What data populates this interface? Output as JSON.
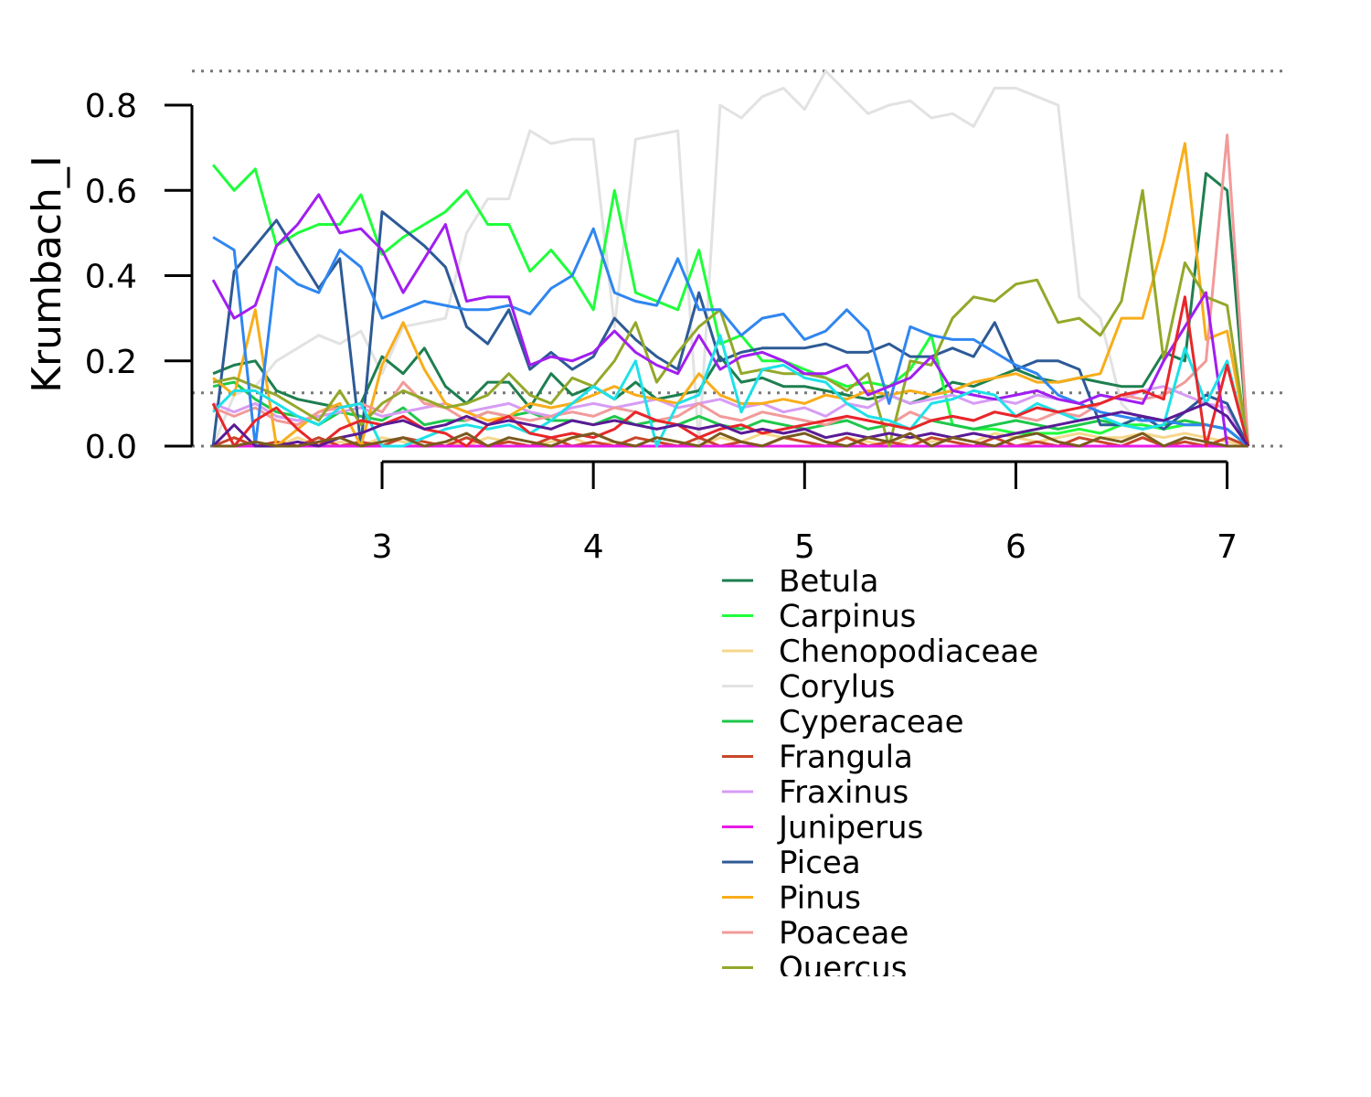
{
  "chart_data": {
    "type": "line",
    "title": "",
    "xlabel": "",
    "ylabel": "Krumbach_I",
    "xlim": [
      2.1,
      7.27
    ],
    "ylim": [
      0,
      0.8
    ],
    "x_ticks": [
      "3",
      "4",
      "5",
      "6",
      "7"
    ],
    "x_tick_values": [
      3,
      4,
      5,
      6,
      7
    ],
    "y_ticks": [
      "0.0",
      "0.2",
      "0.4",
      "0.6",
      "0.8"
    ],
    "y_tick_values": [
      0,
      0.2,
      0.4,
      0.6,
      0.8
    ],
    "reference_lines": [
      0,
      0.125,
      0.88
    ],
    "grid": false,
    "legend_position": "bottom",
    "x": [
      2.2,
      2.3,
      2.4,
      2.5,
      2.6,
      2.7,
      2.8,
      2.9,
      3.0,
      3.1,
      3.2,
      3.3,
      3.4,
      3.5,
      3.6,
      3.7,
      3.8,
      3.9,
      4.0,
      4.1,
      4.2,
      4.3,
      4.4,
      4.5,
      4.6,
      4.7,
      4.8,
      4.9,
      5.0,
      5.1,
      5.2,
      5.3,
      5.4,
      5.5,
      5.6,
      5.7,
      5.8,
      5.9,
      6.0,
      6.1,
      6.2,
      6.3,
      6.4,
      6.5,
      6.6,
      6.7,
      6.8,
      6.9,
      7.0,
      7.1
    ],
    "series": [
      {
        "name": "Betula",
        "color": "#1e7f4f",
        "values": [
          0.17,
          0.19,
          0.2,
          0.13,
          0.11,
          0.1,
          0.09,
          0.1,
          0.21,
          0.17,
          0.23,
          0.14,
          0.1,
          0.15,
          0.15,
          0.09,
          0.17,
          0.12,
          0.14,
          0.11,
          0.15,
          0.11,
          0.12,
          0.13,
          0.21,
          0.15,
          0.16,
          0.14,
          0.14,
          0.13,
          0.12,
          0.11,
          0.12,
          0.1,
          0.12,
          0.15,
          0.14,
          0.16,
          0.18,
          0.16,
          0.15,
          0.16,
          0.15,
          0.14,
          0.14,
          0.22,
          0.2,
          0.64,
          0.6,
          0.0
        ]
      },
      {
        "name": "Carpinus",
        "color": "#1eff3a",
        "values": [
          0.66,
          0.6,
          0.65,
          0.47,
          0.5,
          0.52,
          0.52,
          0.59,
          0.45,
          0.49,
          0.52,
          0.55,
          0.6,
          0.52,
          0.52,
          0.41,
          0.46,
          0.4,
          0.32,
          0.6,
          0.36,
          0.34,
          0.32,
          0.46,
          0.24,
          0.26,
          0.2,
          0.2,
          0.18,
          0.16,
          0.14,
          0.15,
          0.14,
          0.18,
          0.26,
          0.05,
          0.04,
          0.04,
          0.03,
          0.03,
          0.03,
          0.04,
          0.03,
          0.05,
          0.05,
          0.04,
          0.05,
          0.05,
          0.04,
          0.0
        ]
      },
      {
        "name": "Chenopodiaceae",
        "color": "#f5d78c",
        "values": [
          0.0,
          0.0,
          0.01,
          0.0,
          0.02,
          0.0,
          0.01,
          0.0,
          0.02,
          0.01,
          0.0,
          0.01,
          0.0,
          0.02,
          0.01,
          0.0,
          0.01,
          0.02,
          0.0,
          0.01,
          0.0,
          0.02,
          0.01,
          0.0,
          0.02,
          0.01,
          0.03,
          0.02,
          0.01,
          0.0,
          0.02,
          0.01,
          0.0,
          0.02,
          0.01,
          0.02,
          0.01,
          0.03,
          0.02,
          0.01,
          0.02,
          0.03,
          0.02,
          0.02,
          0.03,
          0.02,
          0.03,
          0.02,
          0.01,
          0.0
        ]
      },
      {
        "name": "Corylus",
        "color": "#e2e2e2",
        "values": [
          0.0,
          0.12,
          0.14,
          0.2,
          0.23,
          0.26,
          0.24,
          0.27,
          0.17,
          0.28,
          0.29,
          0.3,
          0.5,
          0.58,
          0.58,
          0.74,
          0.71,
          0.72,
          0.72,
          0.28,
          0.72,
          0.73,
          0.74,
          0.0,
          0.8,
          0.77,
          0.82,
          0.84,
          0.79,
          0.88,
          0.83,
          0.78,
          0.8,
          0.81,
          0.77,
          0.78,
          0.75,
          0.84,
          0.84,
          0.82,
          0.8,
          0.35,
          0.3,
          0.1,
          0.05,
          0.04,
          0.05,
          0.05,
          0.04,
          0.0
        ]
      },
      {
        "name": "Cyperaceae",
        "color": "#1ec74a",
        "values": [
          0.14,
          0.15,
          0.11,
          0.08,
          0.07,
          0.05,
          0.08,
          0.07,
          0.06,
          0.09,
          0.05,
          0.06,
          0.06,
          0.08,
          0.07,
          0.08,
          0.06,
          0.06,
          0.05,
          0.07,
          0.05,
          0.06,
          0.05,
          0.07,
          0.05,
          0.04,
          0.06,
          0.05,
          0.04,
          0.05,
          0.06,
          0.04,
          0.05,
          0.04,
          0.06,
          0.05,
          0.04,
          0.05,
          0.06,
          0.05,
          0.04,
          0.05,
          0.06,
          0.05,
          0.04,
          0.05,
          0.06,
          0.05,
          0.04,
          0.0
        ]
      },
      {
        "name": "Frangula",
        "color": "#c8472a",
        "values": [
          0.0,
          0.02,
          0.0,
          0.01,
          0.0,
          0.02,
          0.0,
          0.01,
          0.0,
          0.02,
          0.01,
          0.0,
          0.02,
          0.0,
          0.01,
          0.0,
          0.02,
          0.0,
          0.01,
          0.0,
          0.02,
          0.01,
          0.0,
          0.02,
          0.0,
          0.01,
          0.0,
          0.02,
          0.01,
          0.0,
          0.02,
          0.0,
          0.01,
          0.0,
          0.02,
          0.01,
          0.0,
          0.02,
          0.0,
          0.01,
          0.0,
          0.02,
          0.01,
          0.0,
          0.02,
          0.0,
          0.01,
          0.0,
          0.02,
          0.0
        ]
      },
      {
        "name": "Fraxinus",
        "color": "#d79cf4",
        "values": [
          0.1,
          0.08,
          0.1,
          0.07,
          0.06,
          0.07,
          0.08,
          0.09,
          0.07,
          0.08,
          0.09,
          0.1,
          0.08,
          0.09,
          0.1,
          0.08,
          0.07,
          0.09,
          0.1,
          0.09,
          0.1,
          0.11,
          0.09,
          0.1,
          0.11,
          0.09,
          0.1,
          0.08,
          0.09,
          0.07,
          0.1,
          0.09,
          0.12,
          0.1,
          0.11,
          0.12,
          0.1,
          0.11,
          0.1,
          0.12,
          0.11,
          0.1,
          0.12,
          0.11,
          0.13,
          0.14,
          0.12,
          0.1,
          0.09,
          0.0
        ]
      },
      {
        "name": "Juniperus",
        "color": "#e81ae8",
        "values": [
          0.0,
          0.0,
          0.0,
          0.0,
          0.0,
          0.0,
          0.0,
          0.0,
          0.0,
          0.0,
          0.0,
          0.0,
          0.0,
          0.0,
          0.0,
          0.0,
          0.0,
          0.0,
          0.0,
          0.0,
          0.0,
          0.0,
          0.0,
          0.0,
          0.0,
          0.0,
          0.0,
          0.0,
          0.0,
          0.0,
          0.0,
          0.0,
          0.0,
          0.0,
          0.0,
          0.0,
          0.0,
          0.0,
          0.0,
          0.0,
          0.0,
          0.0,
          0.0,
          0.0,
          0.0,
          0.0,
          0.0,
          0.0,
          0.0,
          0.0
        ]
      },
      {
        "name": "Picea",
        "color": "#2d5a96",
        "values": [
          0.0,
          0.41,
          0.47,
          0.53,
          0.45,
          0.37,
          0.44,
          0.0,
          0.55,
          0.51,
          0.47,
          0.42,
          0.28,
          0.24,
          0.32,
          0.18,
          0.22,
          0.18,
          0.21,
          0.3,
          0.25,
          0.21,
          0.18,
          0.36,
          0.2,
          0.22,
          0.23,
          0.23,
          0.23,
          0.24,
          0.22,
          0.22,
          0.24,
          0.21,
          0.21,
          0.23,
          0.21,
          0.29,
          0.18,
          0.2,
          0.2,
          0.18,
          0.05,
          0.05,
          0.07,
          0.04,
          0.08,
          0.12,
          0.1,
          0.0
        ]
      },
      {
        "name": "Pinus",
        "color": "#f8ad1a",
        "values": [
          0.16,
          0.12,
          0.32,
          0.0,
          0.04,
          0.08,
          0.1,
          0.0,
          0.19,
          0.29,
          0.18,
          0.1,
          0.08,
          0.06,
          0.07,
          0.1,
          0.09,
          0.1,
          0.12,
          0.14,
          0.12,
          0.11,
          0.1,
          0.17,
          0.12,
          0.1,
          0.1,
          0.11,
          0.1,
          0.12,
          0.11,
          0.13,
          0.12,
          0.13,
          0.12,
          0.13,
          0.15,
          0.16,
          0.17,
          0.15,
          0.15,
          0.16,
          0.17,
          0.3,
          0.3,
          0.48,
          0.71,
          0.25,
          0.27,
          0.0
        ]
      },
      {
        "name": "Poaceae",
        "color": "#f29a9a",
        "values": [
          0.09,
          0.07,
          0.09,
          0.06,
          0.05,
          0.08,
          0.09,
          0.1,
          0.08,
          0.15,
          0.1,
          0.09,
          0.06,
          0.08,
          0.07,
          0.06,
          0.07,
          0.08,
          0.07,
          0.09,
          0.08,
          0.06,
          0.07,
          0.1,
          0.07,
          0.06,
          0.08,
          0.07,
          0.06,
          0.05,
          0.07,
          0.06,
          0.05,
          0.08,
          0.06,
          0.07,
          0.06,
          0.08,
          0.07,
          0.06,
          0.08,
          0.07,
          0.1,
          0.12,
          0.11,
          0.12,
          0.15,
          0.2,
          0.73,
          0.0
        ]
      },
      {
        "name": "Quercus",
        "color": "#93a82a",
        "values": [
          0.15,
          0.16,
          0.14,
          0.12,
          0.09,
          0.06,
          0.13,
          0.05,
          0.1,
          0.13,
          0.11,
          0.09,
          0.1,
          0.12,
          0.17,
          0.12,
          0.1,
          0.16,
          0.14,
          0.2,
          0.29,
          0.15,
          0.22,
          0.28,
          0.32,
          0.17,
          0.18,
          0.17,
          0.17,
          0.16,
          0.13,
          0.17,
          0.0,
          0.2,
          0.19,
          0.3,
          0.35,
          0.34,
          0.38,
          0.39,
          0.29,
          0.3,
          0.26,
          0.34,
          0.6,
          0.2,
          0.43,
          0.35,
          0.33,
          0.0
        ]
      }
    ],
    "unlabeled_series": [
      {
        "color": "#2f86f0",
        "values": [
          0.49,
          0.46,
          0.0,
          0.42,
          0.38,
          0.36,
          0.46,
          0.42,
          0.3,
          0.32,
          0.34,
          0.33,
          0.32,
          0.32,
          0.33,
          0.31,
          0.37,
          0.4,
          0.51,
          0.36,
          0.34,
          0.33,
          0.44,
          0.32,
          0.32,
          0.26,
          0.3,
          0.31,
          0.25,
          0.27,
          0.32,
          0.27,
          0.1,
          0.28,
          0.26,
          0.25,
          0.25,
          0.22,
          0.19,
          0.17,
          0.12,
          0.1,
          0.08,
          0.07,
          0.06,
          0.06,
          0.05,
          0.05,
          0.04,
          0.0
        ]
      },
      {
        "color": "#a11ef0",
        "values": [
          0.39,
          0.3,
          0.33,
          0.47,
          0.52,
          0.59,
          0.5,
          0.51,
          0.46,
          0.36,
          0.44,
          0.52,
          0.34,
          0.35,
          0.35,
          0.19,
          0.21,
          0.2,
          0.22,
          0.27,
          0.22,
          0.19,
          0.17,
          0.26,
          0.18,
          0.21,
          0.22,
          0.2,
          0.17,
          0.17,
          0.19,
          0.12,
          0.14,
          0.16,
          0.21,
          0.13,
          0.12,
          0.11,
          0.12,
          0.13,
          0.11,
          0.1,
          0.12,
          0.11,
          0.1,
          0.2,
          0.28,
          0.36,
          0.0,
          0.0
        ]
      },
      {
        "color": "#1ee1e8",
        "values": [
          0.08,
          0.13,
          0.13,
          0.1,
          0.07,
          0.05,
          0.09,
          0.1,
          0.0,
          0.0,
          0.02,
          0.04,
          0.05,
          0.04,
          0.05,
          0.03,
          0.06,
          0.1,
          0.14,
          0.11,
          0.2,
          0.0,
          0.1,
          0.12,
          0.26,
          0.08,
          0.18,
          0.19,
          0.16,
          0.15,
          0.1,
          0.07,
          0.06,
          0.04,
          0.1,
          0.11,
          0.13,
          0.12,
          0.07,
          0.1,
          0.08,
          0.06,
          0.07,
          0.05,
          0.04,
          0.05,
          0.23,
          0.1,
          0.2,
          0.0
        ]
      },
      {
        "color": "#e8262a",
        "values": [
          0.1,
          0.0,
          0.06,
          0.09,
          0.04,
          0.0,
          0.04,
          0.06,
          0.05,
          0.07,
          0.04,
          0.03,
          0.0,
          0.05,
          0.07,
          0.03,
          0.02,
          0.03,
          0.02,
          0.04,
          0.08,
          0.06,
          0.05,
          0.02,
          0.04,
          0.05,
          0.03,
          0.04,
          0.05,
          0.06,
          0.07,
          0.06,
          0.05,
          0.04,
          0.06,
          0.07,
          0.06,
          0.08,
          0.07,
          0.09,
          0.08,
          0.09,
          0.1,
          0.12,
          0.13,
          0.11,
          0.35,
          0.0,
          0.19,
          0.0
        ]
      },
      {
        "color": "#5a1a96",
        "values": [
          0.0,
          0.05,
          0.0,
          0.0,
          0.01,
          0.0,
          0.02,
          0.03,
          0.05,
          0.06,
          0.04,
          0.05,
          0.07,
          0.05,
          0.06,
          0.05,
          0.04,
          0.06,
          0.05,
          0.06,
          0.05,
          0.04,
          0.05,
          0.04,
          0.05,
          0.03,
          0.04,
          0.03,
          0.04,
          0.02,
          0.03,
          0.02,
          0.03,
          0.02,
          0.03,
          0.02,
          0.03,
          0.02,
          0.03,
          0.04,
          0.05,
          0.06,
          0.07,
          0.08,
          0.07,
          0.06,
          0.08,
          0.1,
          0.07,
          0.0
        ]
      },
      {
        "color": "#7a5a1e",
        "values": [
          0.0,
          0.0,
          0.01,
          0.0,
          0.0,
          0.01,
          0.02,
          0.0,
          0.01,
          0.02,
          0.0,
          0.01,
          0.03,
          0.0,
          0.02,
          0.01,
          0.0,
          0.02,
          0.03,
          0.01,
          0.0,
          0.02,
          0.01,
          0.0,
          0.03,
          0.01,
          0.0,
          0.02,
          0.03,
          0.01,
          0.0,
          0.02,
          0.01,
          0.03,
          0.0,
          0.02,
          0.01,
          0.0,
          0.02,
          0.03,
          0.01,
          0.0,
          0.02,
          0.01,
          0.03,
          0.0,
          0.02,
          0.01,
          0.0,
          0.0
        ]
      }
    ]
  }
}
